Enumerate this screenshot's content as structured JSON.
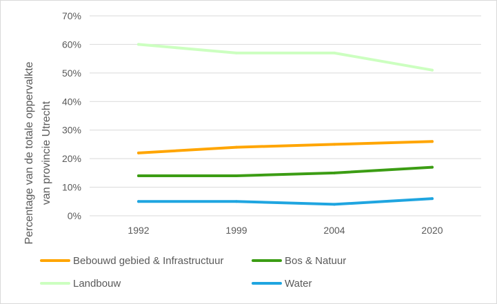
{
  "chart_data": {
    "type": "line",
    "title": "",
    "xlabel": "",
    "ylabel_lines": [
      "Percentage van de totale oppervalkte",
      "van provincie Utrecht"
    ],
    "categories": [
      "1992",
      "1999",
      "2004",
      "2020"
    ],
    "ylim": [
      0,
      70
    ],
    "y_ticks": [
      "0%",
      "10%",
      "20%",
      "30%",
      "40%",
      "50%",
      "60%",
      "70%"
    ],
    "grid": true,
    "legend_position": "bottom",
    "series": [
      {
        "name": "Bebouwd gebied & Infrastructuur",
        "color": "#FFA500",
        "values": [
          22,
          24,
          25,
          26
        ]
      },
      {
        "name": "Bos & Natuur",
        "color": "#3C9D14",
        "values": [
          14,
          14,
          15,
          17
        ]
      },
      {
        "name": "Landbouw",
        "color": "#CCFFC0",
        "values": [
          60,
          57,
          57,
          51
        ]
      },
      {
        "name": "Water",
        "color": "#1FA5E0",
        "values": [
          5,
          5,
          4,
          6
        ]
      }
    ]
  }
}
